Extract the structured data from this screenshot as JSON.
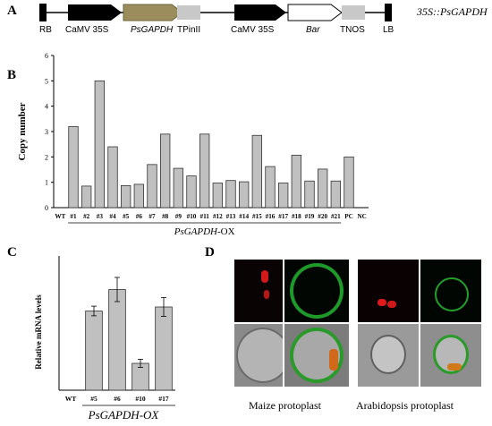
{
  "panels": {
    "a": "A",
    "b": "B",
    "c": "C",
    "d": "D"
  },
  "construct": {
    "name": "35S::PsGAPDH",
    "elements": [
      "RB",
      "CaMV 35S",
      "PsGAPDH",
      "TPinII",
      "CaMV 35S",
      "Bar",
      "TNOS",
      "LB"
    ]
  },
  "chart_b": {
    "type": "bar",
    "ylabel": "Copy number",
    "xgroup": "PsGAPDH-OX",
    "xgroup_italic": "PsGAPDH",
    "xgroup_suffix": "-OX",
    "ylim": [
      0,
      6
    ],
    "yticks": [
      "0",
      "1",
      "2",
      "3",
      "4",
      "5",
      "6"
    ],
    "categories": [
      "WT",
      "#1",
      "#2",
      "#3",
      "#4",
      "#5",
      "#6",
      "#7",
      "#8",
      "#9",
      "#10",
      "#11",
      "#12",
      "#13",
      "#14",
      "#15",
      "#16",
      "#17",
      "#18",
      "#19",
      "#20",
      "#21",
      "PC",
      "NC"
    ],
    "values": [
      0,
      3.2,
      0.85,
      5.0,
      2.4,
      0.87,
      0.92,
      1.7,
      2.9,
      1.55,
      1.25,
      2.9,
      0.97,
      1.07,
      1.02,
      2.85,
      1.62,
      0.97,
      2.07,
      1.05,
      1.52,
      1.05,
      2.0,
      0
    ]
  },
  "chart_c": {
    "type": "bar",
    "ylabel": "Relative mRNA levels",
    "xgroup_italic": "PsGAPDH",
    "xgroup_suffix": "-OX",
    "ylim": [
      0,
      5
    ],
    "categories": [
      "WT",
      "#5",
      "#6",
      "#10",
      "#17"
    ],
    "values": [
      0,
      2.95,
      3.75,
      1.0,
      3.1
    ],
    "errors": [
      0,
      0.18,
      0.45,
      0.15,
      0.35
    ]
  },
  "chart_data": [
    {
      "type": "bar",
      "ylabel": "Copy number",
      "ylim": [
        0,
        6
      ],
      "categories": [
        "WT",
        "#1",
        "#2",
        "#3",
        "#4",
        "#5",
        "#6",
        "#7",
        "#8",
        "#9",
        "#10",
        "#11",
        "#12",
        "#13",
        "#14",
        "#15",
        "#16",
        "#17",
        "#18",
        "#19",
        "#20",
        "#21",
        "PC",
        "NC"
      ],
      "values": [
        0,
        3.2,
        0.85,
        5.0,
        2.4,
        0.87,
        0.92,
        1.7,
        2.9,
        1.55,
        1.25,
        2.9,
        0.97,
        1.07,
        1.02,
        2.85,
        1.62,
        0.97,
        2.07,
        1.05,
        1.52,
        1.05,
        2.0,
        0
      ]
    },
    {
      "type": "bar",
      "ylabel": "Relative mRNA levels",
      "ylim": [
        0,
        5
      ],
      "categories": [
        "WT",
        "#5",
        "#6",
        "#10",
        "#17"
      ],
      "values": [
        0,
        2.95,
        3.75,
        1.0,
        3.1
      ],
      "errors": [
        0,
        0.18,
        0.45,
        0.15,
        0.35
      ]
    }
  ],
  "microscopy": {
    "maize_caption": "Maize protoplast",
    "arabidopsis_caption": "Arabidopsis protoplast"
  },
  "colors": {
    "bar_fill": "#c0c0c0",
    "gene_fill": "#9b8e5c",
    "promoter_fill": "#000000"
  }
}
